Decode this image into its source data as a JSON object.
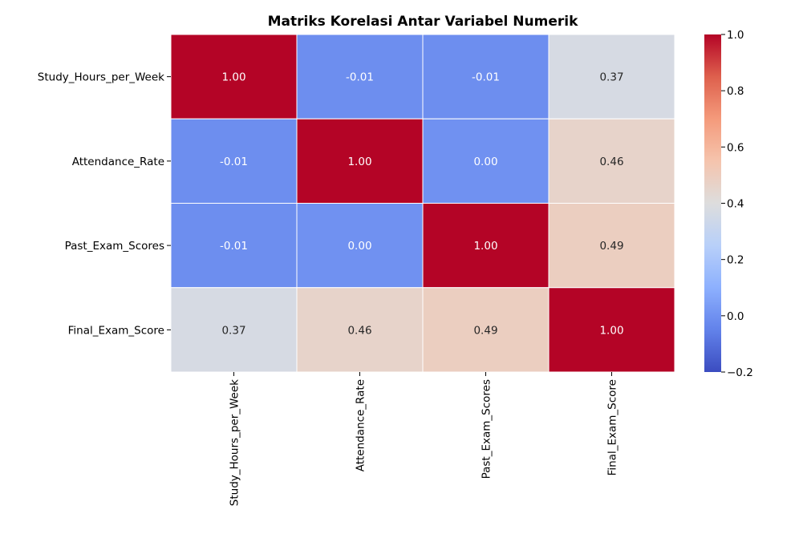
{
  "chart_data": {
    "type": "heatmap",
    "title": "Matriks Korelasi Antar Variabel Numerik",
    "xlabel": "",
    "ylabel": "",
    "row_labels": [
      "Study_Hours_per_Week",
      "Attendance_Rate",
      "Past_Exam_Scores",
      "Final_Exam_Score"
    ],
    "col_labels": [
      "Study_Hours_per_Week",
      "Attendance_Rate",
      "Past_Exam_Scores",
      "Final_Exam_Score"
    ],
    "values": [
      [
        1.0,
        -0.01,
        -0.01,
        0.37
      ],
      [
        -0.01,
        1.0,
        0.0,
        0.46
      ],
      [
        -0.01,
        0.0,
        1.0,
        0.49
      ],
      [
        0.37,
        0.46,
        0.49,
        1.0
      ]
    ],
    "value_labels": [
      [
        "1.00",
        "-0.01",
        "-0.01",
        "0.37"
      ],
      [
        "-0.01",
        "1.00",
        "0.00",
        "0.46"
      ],
      [
        "-0.01",
        "0.00",
        "1.00",
        "0.49"
      ],
      [
        "0.37",
        "0.46",
        "0.49",
        "1.00"
      ]
    ],
    "colormap": "coolwarm",
    "colorbar": {
      "vmin": -0.2,
      "vmax": 1.0,
      "ticks": [
        -0.2,
        0.0,
        0.2,
        0.4,
        0.6,
        0.8,
        1.0
      ],
      "tick_labels": [
        "−0.2",
        "0.0",
        "0.2",
        "0.4",
        "0.6",
        "0.8",
        "1.0"
      ]
    },
    "colors": {
      "cell_border": "#ffffff",
      "text_dark": "#262626",
      "text_light": "#ffffff"
    }
  }
}
